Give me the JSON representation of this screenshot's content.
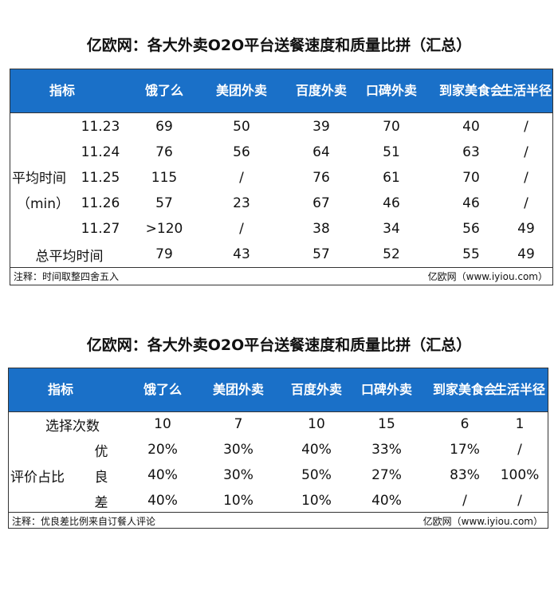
{
  "table1": {
    "title": "亿欧网：各大外卖O2O平台送餐速度和质量比拼（汇总）",
    "headers": [
      "指标",
      "饿了么",
      "美团外卖",
      "百度外卖",
      "口碑外卖",
      "到家美食会",
      "生活半径"
    ],
    "stub_label_1": "平均时间",
    "stub_label_2": "（min）",
    "rows": [
      {
        "label": "11.23",
        "cells": [
          "69",
          "50",
          "39",
          "70",
          "40",
          "/"
        ]
      },
      {
        "label": "11.24",
        "cells": [
          "76",
          "56",
          "64",
          "51",
          "63",
          "/"
        ]
      },
      {
        "label": "11.25",
        "cells": [
          "115",
          "/",
          "76",
          "61",
          "70",
          "/"
        ]
      },
      {
        "label": "11.26",
        "cells": [
          "57",
          "23",
          "67",
          "46",
          "46",
          "/"
        ]
      },
      {
        "label": "11.27",
        "cells": [
          ">120",
          "/",
          "38",
          "34",
          "56",
          "49"
        ]
      },
      {
        "label": "总平均时间",
        "cells": [
          "79",
          "43",
          "57",
          "52",
          "55",
          "49"
        ]
      }
    ],
    "note": "注释：时间取整四舍五入",
    "source": "亿欧网（www.iyiou.com）"
  },
  "table2": {
    "title": "亿欧网：各大外卖O2O平台送餐速度和质量比拼（汇总）",
    "headers": [
      "指标",
      "饿了么",
      "美团外卖",
      "百度外卖",
      "口碑外卖",
      "到家美食会",
      "生活半径"
    ],
    "stub_label": "评价占比",
    "rows": [
      {
        "label": "选择次数",
        "cells": [
          "10",
          "7",
          "10",
          "15",
          "6",
          "1"
        ]
      },
      {
        "label": "优",
        "cells": [
          "20%",
          "30%",
          "40%",
          "33%",
          "17%",
          "/"
        ]
      },
      {
        "label": "良",
        "cells": [
          "40%",
          "30%",
          "50%",
          "27%",
          "83%",
          "100%"
        ]
      },
      {
        "label": "差",
        "cells": [
          "40%",
          "10%",
          "10%",
          "40%",
          "/",
          "/"
        ]
      }
    ],
    "note": "注释：优良差比例来自订餐人评论",
    "source": "亿欧网（www.iyiou.com）"
  }
}
